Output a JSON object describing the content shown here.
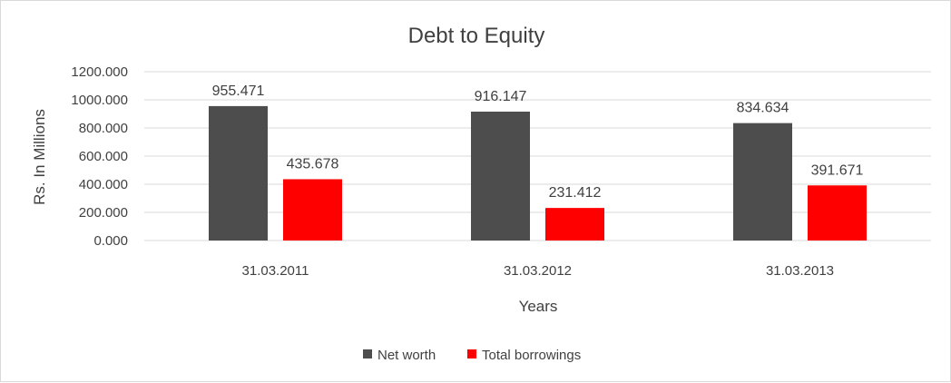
{
  "chart_data": {
    "type": "bar",
    "title": "Debt to Equity",
    "xlabel": "Years",
    "ylabel": "Rs. In Millions",
    "categories": [
      "31.03.2011",
      "31.03.2012",
      "31.03.2013"
    ],
    "series": [
      {
        "name": "Net worth",
        "color": "#4d4d4d",
        "values": [
          955.471,
          916.147,
          834.634
        ],
        "labels": [
          "955.471",
          "916.147",
          "834.634"
        ]
      },
      {
        "name": "Total borrowings",
        "color": "#ff0000",
        "values": [
          435.678,
          231.412,
          391.671
        ],
        "labels": [
          "435.678",
          "231.412",
          "391.671"
        ]
      }
    ],
    "ylim": [
      0,
      1200
    ],
    "yticks": [
      "0.000",
      "200.000",
      "400.000",
      "600.000",
      "800.000",
      "1000.000",
      "1200.000"
    ],
    "grid": true,
    "legend": "bottom"
  }
}
